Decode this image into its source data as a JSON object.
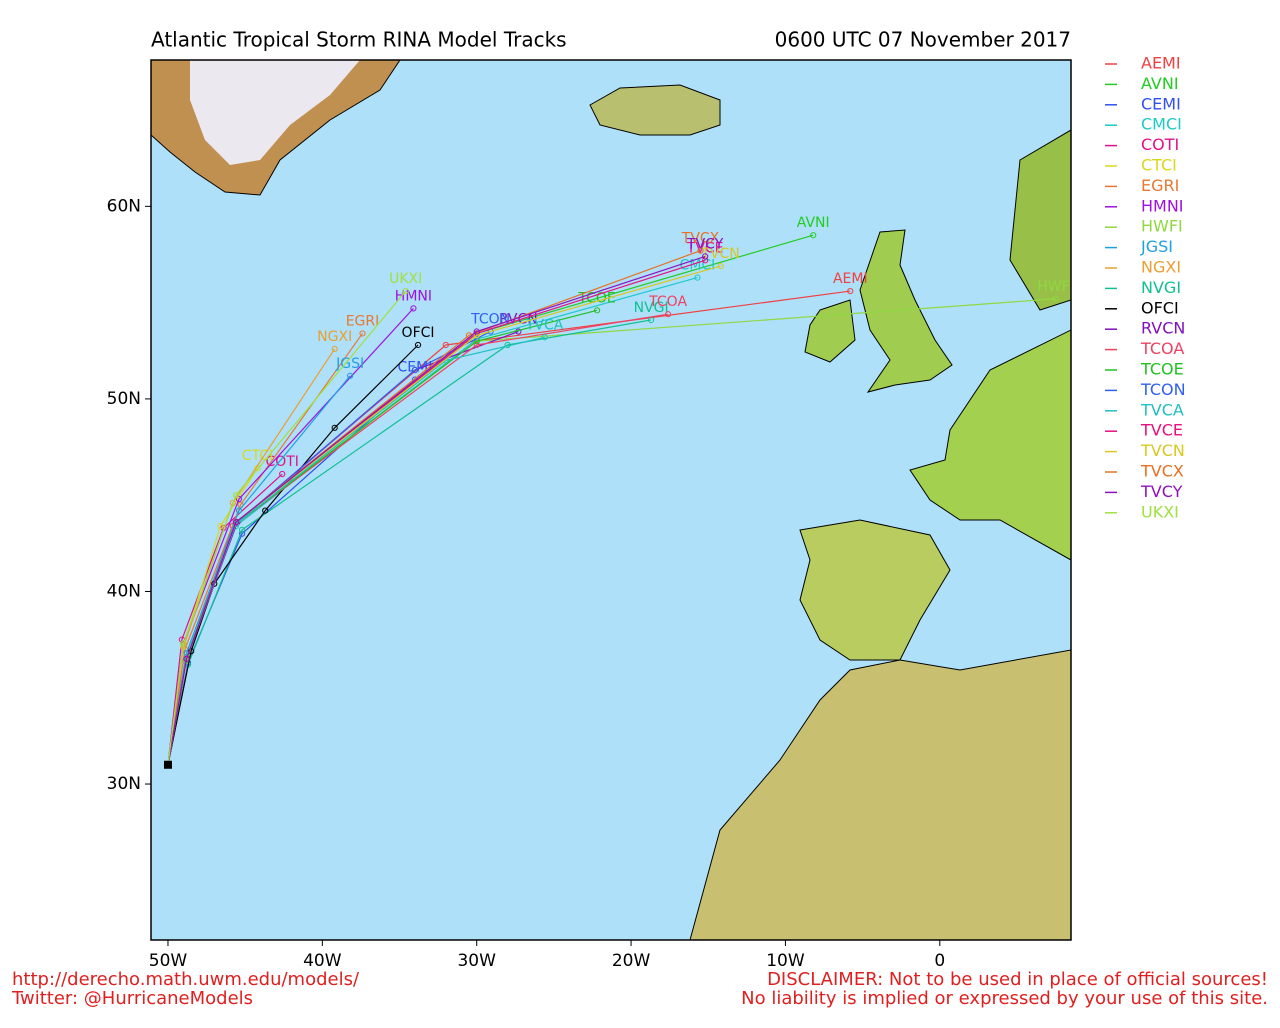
{
  "chart_data": {
    "type": "track-map",
    "title": "Atlantic Tropical Storm RINA Model Tracks",
    "subtitle": "0600 UTC 07 November 2017",
    "xlim": [
      -51.1,
      8.5
    ],
    "ylim": [
      21.9,
      67.6
    ],
    "xticks": [
      {
        "value": -50,
        "label": "50W"
      },
      {
        "value": -40,
        "label": "40W"
      },
      {
        "value": -30,
        "label": "30W"
      },
      {
        "value": -20,
        "label": "20W"
      },
      {
        "value": -10,
        "label": "10W"
      },
      0
    ],
    "yticks": [
      {
        "value": 30,
        "label": "30N"
      },
      {
        "value": 40,
        "label": "40N"
      },
      {
        "value": 50,
        "label": "50N"
      },
      {
        "value": 60,
        "label": "60N"
      }
    ],
    "series": [
      {
        "name": "AEMI",
        "color": "#f04040",
        "lon": [
          -50,
          -48.8,
          -45.8,
          -32,
          -5.8
        ],
        "lat": [
          31,
          36.5,
          43.4,
          52.8,
          55.6
        ]
      },
      {
        "name": "AVNI",
        "color": "#22cc22",
        "lon": [
          -50,
          -48.8,
          -45.6,
          -30,
          -8.2
        ],
        "lat": [
          31,
          36.6,
          43.6,
          53.4,
          58.5
        ]
      },
      {
        "name": "CEMI",
        "color": "#3050f0",
        "lon": [
          -50,
          -48.7,
          -45.2,
          -34
        ],
        "lat": [
          31,
          36.3,
          43.0,
          51.0
        ]
      },
      {
        "name": "CMCI",
        "color": "#20c8c8",
        "lon": [
          -50,
          -48.9,
          -45.6,
          -30,
          -15.7
        ],
        "lat": [
          31,
          36.4,
          43.4,
          53.1,
          56.3
        ]
      },
      {
        "name": "COTI",
        "color": "#e0108a",
        "lon": [
          -50,
          -49.1,
          -46.4,
          -42.6
        ],
        "lat": [
          31,
          37.5,
          43.3,
          46.1
        ]
      },
      {
        "name": "CTCI",
        "color": "#d8d820",
        "lon": [
          -50,
          -49.0,
          -46.6,
          -44.2
        ],
        "lat": [
          31,
          37.2,
          43.4,
          46.4
        ]
      },
      {
        "name": "EGRI",
        "color": "#e87830",
        "lon": [
          -50,
          -48.9,
          -45.3,
          -37.4
        ],
        "lat": [
          31,
          37.0,
          44.5,
          53.4
        ]
      },
      {
        "name": "HMNI",
        "color": "#a010e0",
        "lon": [
          -50,
          -49.0,
          -45.4,
          -34.1
        ],
        "lat": [
          31,
          37.3,
          44.8,
          54.7
        ]
      },
      {
        "name": "HWFI",
        "color": "#90d840",
        "lon": [
          -50,
          -48.8,
          -45.6,
          -30,
          7.5
        ],
        "lat": [
          31,
          36.4,
          43.5,
          53.0,
          55.2
        ]
      },
      {
        "name": "JGSI",
        "color": "#20a0e0",
        "lon": [
          -50,
          -48.8,
          -45.4,
          -38.2
        ],
        "lat": [
          31,
          36.8,
          44.2,
          51.2
        ]
      },
      {
        "name": "NGXI",
        "color": "#e8a030",
        "lon": [
          -50,
          -49.0,
          -45.8,
          -39.2
        ],
        "lat": [
          31,
          37.1,
          44.6,
          52.6
        ]
      },
      {
        "name": "NVGI",
        "color": "#10c090",
        "lon": [
          -50,
          -48.7,
          -45.2,
          -28,
          -18.7
        ],
        "lat": [
          31,
          36.2,
          43.2,
          52.8,
          54.1
        ]
      },
      {
        "name": "OFCI",
        "color": "#000000",
        "lon": [
          -50,
          -48.5,
          -47,
          -43.7,
          -39.2,
          -33.8
        ],
        "lat": [
          31,
          36.9,
          40.4,
          44.2,
          48.5,
          52.8
        ]
      },
      {
        "name": "RVCN",
        "color": "#8010c0",
        "lon": [
          -50,
          -48.8,
          -45.5,
          -34,
          -27.3
        ],
        "lat": [
          31,
          36.5,
          43.6,
          51.5,
          53.5
        ]
      },
      {
        "name": "TCOA",
        "color": "#f04060",
        "lon": [
          -50,
          -48.8,
          -45.6,
          -30,
          -17.6
        ],
        "lat": [
          31,
          36.5,
          43.5,
          52.8,
          54.4
        ]
      },
      {
        "name": "TCOE",
        "color": "#20c020",
        "lon": [
          -50,
          -48.8,
          -45.6,
          -30,
          -22.2
        ],
        "lat": [
          31,
          36.5,
          43.5,
          53.0,
          54.6
        ]
      },
      {
        "name": "TCON",
        "color": "#3060f0",
        "lon": [
          -50,
          -48.8,
          -45.6,
          -34,
          -29.1
        ],
        "lat": [
          31,
          36.5,
          43.5,
          51.5,
          53.5
        ]
      },
      {
        "name": "TVCA",
        "color": "#20c0c0",
        "lon": [
          -50,
          -48.8,
          -45.6,
          -32,
          -25.6
        ],
        "lat": [
          31,
          36.5,
          43.5,
          52.0,
          53.2
        ]
      },
      {
        "name": "TVCE",
        "color": "#e81080",
        "lon": [
          -50,
          -48.8,
          -45.6,
          -30,
          -15.2
        ],
        "lat": [
          31,
          36.5,
          43.6,
          53.4,
          57.2
        ]
      },
      {
        "name": "TVCN",
        "color": "#d8c820",
        "lon": [
          -50,
          -48.8,
          -45.6,
          -30,
          -14.2
        ],
        "lat": [
          31,
          36.5,
          43.6,
          53.3,
          56.9
        ]
      },
      {
        "name": "TVCX",
        "color": "#e87020",
        "lon": [
          -50,
          -48.8,
          -45.6,
          -30.5,
          -15.5
        ],
        "lat": [
          31,
          36.5,
          43.6,
          53.3,
          57.7
        ]
      },
      {
        "name": "TVCY",
        "color": "#9010c0",
        "lon": [
          -50,
          -48.8,
          -45.6,
          -30,
          -15.2
        ],
        "lat": [
          31,
          36.5,
          43.6,
          53.5,
          57.4
        ]
      },
      {
        "name": "UKXI",
        "color": "#a0e040",
        "lon": [
          -50,
          -49.0,
          -45.6,
          -34.6
        ],
        "lat": [
          31,
          37.3,
          45.0,
          55.6
        ]
      }
    ]
  },
  "footer": {
    "url": "http://derecho.math.uwm.edu/models/",
    "twitter": "Twitter: @HurricaneModels",
    "disclaimer": "DISCLAIMER: Not to be used in place of official sources!",
    "liability": "No liability is implied or expressed by your use of this site."
  }
}
